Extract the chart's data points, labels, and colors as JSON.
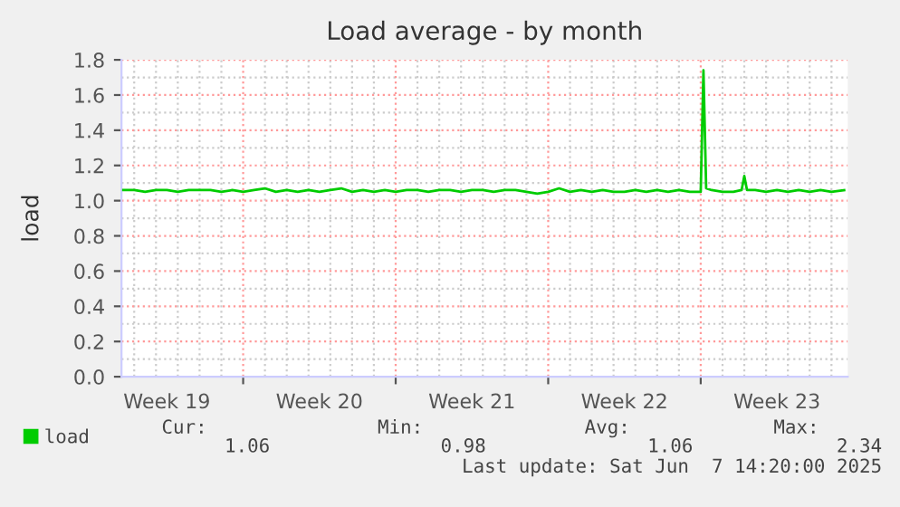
{
  "chart_data": {
    "type": "line",
    "title": "Load average - by month",
    "ylabel": "load",
    "x": [
      "2025-05-05T12:00",
      "2025-05-06T00:00",
      "2025-05-06T12:00",
      "2025-05-07T00:00",
      "2025-05-07T12:00",
      "2025-05-08T00:00",
      "2025-05-08T12:00",
      "2025-05-09T00:00",
      "2025-05-09T12:00",
      "2025-05-10T00:00",
      "2025-05-10T12:00",
      "2025-05-11T00:00",
      "2025-05-11T12:00",
      "2025-05-12T00:00",
      "2025-05-12T12:00",
      "2025-05-13T00:00",
      "2025-05-13T12:00",
      "2025-05-14T00:00",
      "2025-05-14T12:00",
      "2025-05-15T00:00",
      "2025-05-15T12:00",
      "2025-05-16T00:00",
      "2025-05-16T12:00",
      "2025-05-17T00:00",
      "2025-05-17T12:00",
      "2025-05-18T00:00",
      "2025-05-18T12:00",
      "2025-05-19T00:00",
      "2025-05-19T12:00",
      "2025-05-20T00:00",
      "2025-05-20T12:00",
      "2025-05-21T00:00",
      "2025-05-21T12:00",
      "2025-05-22T00:00",
      "2025-05-22T12:00",
      "2025-05-23T00:00",
      "2025-05-23T12:00",
      "2025-05-24T00:00",
      "2025-05-24T12:00",
      "2025-05-25T00:00",
      "2025-05-25T12:00",
      "2025-05-26T00:00",
      "2025-05-26T12:00",
      "2025-05-27T00:00",
      "2025-05-27T12:00",
      "2025-05-28T00:00",
      "2025-05-28T12:00",
      "2025-05-29T00:00",
      "2025-05-29T12:00",
      "2025-05-30T00:00",
      "2025-05-30T12:00",
      "2025-05-31T00:00",
      "2025-05-31T12:00",
      "2025-06-01T00:00",
      "2025-06-01T03:00",
      "2025-06-01T06:00",
      "2025-06-01T12:00",
      "2025-06-02T00:00",
      "2025-06-02T12:00",
      "2025-06-02T21:00",
      "2025-06-03T00:00",
      "2025-06-03T03:00",
      "2025-06-03T12:00",
      "2025-06-04T00:00",
      "2025-06-04T12:00",
      "2025-06-05T00:00",
      "2025-06-05T12:00",
      "2025-06-06T00:00",
      "2025-06-06T12:00",
      "2025-06-07T00:00",
      "2025-06-07T14:00"
    ],
    "series": [
      {
        "name": "load",
        "color": "#00cc00",
        "values": [
          1.06,
          1.06,
          1.05,
          1.06,
          1.06,
          1.05,
          1.06,
          1.06,
          1.06,
          1.05,
          1.06,
          1.05,
          1.06,
          1.07,
          1.05,
          1.06,
          1.05,
          1.06,
          1.05,
          1.06,
          1.07,
          1.05,
          1.06,
          1.05,
          1.06,
          1.05,
          1.06,
          1.06,
          1.05,
          1.06,
          1.06,
          1.05,
          1.06,
          1.06,
          1.05,
          1.06,
          1.06,
          1.05,
          1.04,
          1.05,
          1.07,
          1.05,
          1.06,
          1.05,
          1.06,
          1.05,
          1.05,
          1.06,
          1.05,
          1.06,
          1.05,
          1.06,
          1.05,
          1.05,
          1.74,
          1.07,
          1.06,
          1.05,
          1.05,
          1.06,
          1.14,
          1.06,
          1.06,
          1.05,
          1.06,
          1.05,
          1.06,
          1.05,
          1.06,
          1.05,
          1.06
        ]
      }
    ],
    "xlim": [
      "2025-05-05T10:00",
      "2025-06-07T18:00"
    ],
    "xticks": [
      {
        "value": "2025-05-07T12:00",
        "label": "Week 19"
      },
      {
        "value": "2025-05-11T00:00",
        "label": null
      },
      {
        "value": "2025-05-14T12:00",
        "label": "Week 20"
      },
      {
        "value": "2025-05-18T00:00",
        "label": null
      },
      {
        "value": "2025-05-21T12:00",
        "label": "Week 21"
      },
      {
        "value": "2025-05-25T00:00",
        "label": null
      },
      {
        "value": "2025-05-28T12:00",
        "label": "Week 22"
      },
      {
        "value": "2025-06-01T00:00",
        "label": null
      },
      {
        "value": "2025-06-04T12:00",
        "label": "Week 23"
      }
    ],
    "ylim": [
      0,
      1.8
    ],
    "yticks": [
      {
        "value": 0,
        "label": "0.0"
      },
      {
        "value": 0.2,
        "label": "0.2"
      },
      {
        "value": 0.4,
        "label": "0.4"
      },
      {
        "value": 0.6,
        "label": "0.6"
      },
      {
        "value": 0.8,
        "label": "0.8"
      },
      {
        "value": 1.0,
        "label": "1.0"
      },
      {
        "value": 1.2,
        "label": "1.2"
      },
      {
        "value": 1.4,
        "label": "1.4"
      },
      {
        "value": 1.6,
        "label": "1.6"
      },
      {
        "value": 1.8,
        "label": "1.8"
      }
    ],
    "grid": true,
    "legend": "bottom left",
    "marker": "none",
    "line_style": "solid",
    "annotations": [
      "Cur:",
      "Min:",
      "Avg:",
      "Max:",
      "1.06",
      "0.98",
      "1.06",
      "2.34",
      "Last update: Sat Jun  7 14:20:00 2025"
    ]
  }
}
